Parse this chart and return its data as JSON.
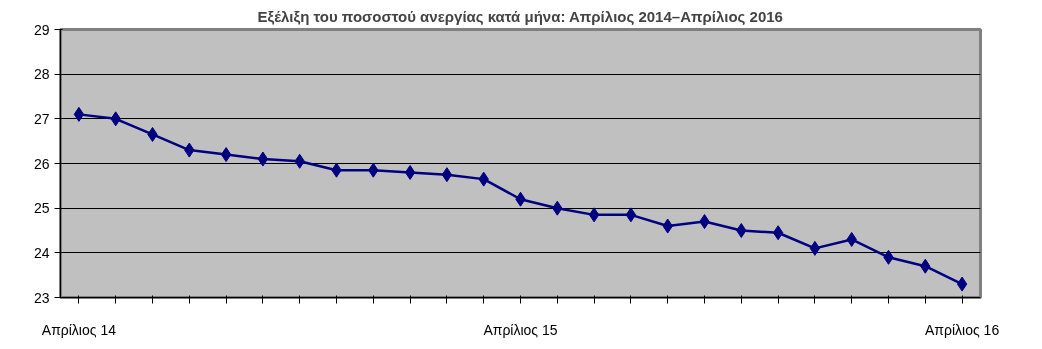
{
  "chart_data": {
    "type": "line",
    "title": "Εξέλιξη του ποσοστού ανεργίας κατά μήνα: Απρίλιος 2014–Απρίλιος 2016",
    "categories": [
      "Απρίλιος 14",
      null,
      null,
      null,
      null,
      null,
      null,
      null,
      null,
      null,
      null,
      null,
      "Απρίλιος 15",
      null,
      null,
      null,
      null,
      null,
      null,
      null,
      null,
      null,
      null,
      null,
      "Απρίλιος 16"
    ],
    "series": [
      {
        "color": "#000080",
        "values": [
          27.1,
          27.0,
          26.65,
          26.3,
          26.2,
          26.1,
          26.05,
          25.85,
          25.85,
          25.8,
          25.75,
          25.65,
          25.2,
          25.0,
          24.85,
          24.85,
          24.6,
          24.7,
          24.5,
          24.45,
          24.1,
          24.3,
          23.9,
          23.7,
          23.3
        ]
      }
    ],
    "ylim": [
      23,
      29
    ],
    "yticks": [
      23,
      24,
      25,
      26,
      27,
      28,
      29
    ],
    "grid": "y",
    "marker": "diamond",
    "line_style": "solid"
  }
}
